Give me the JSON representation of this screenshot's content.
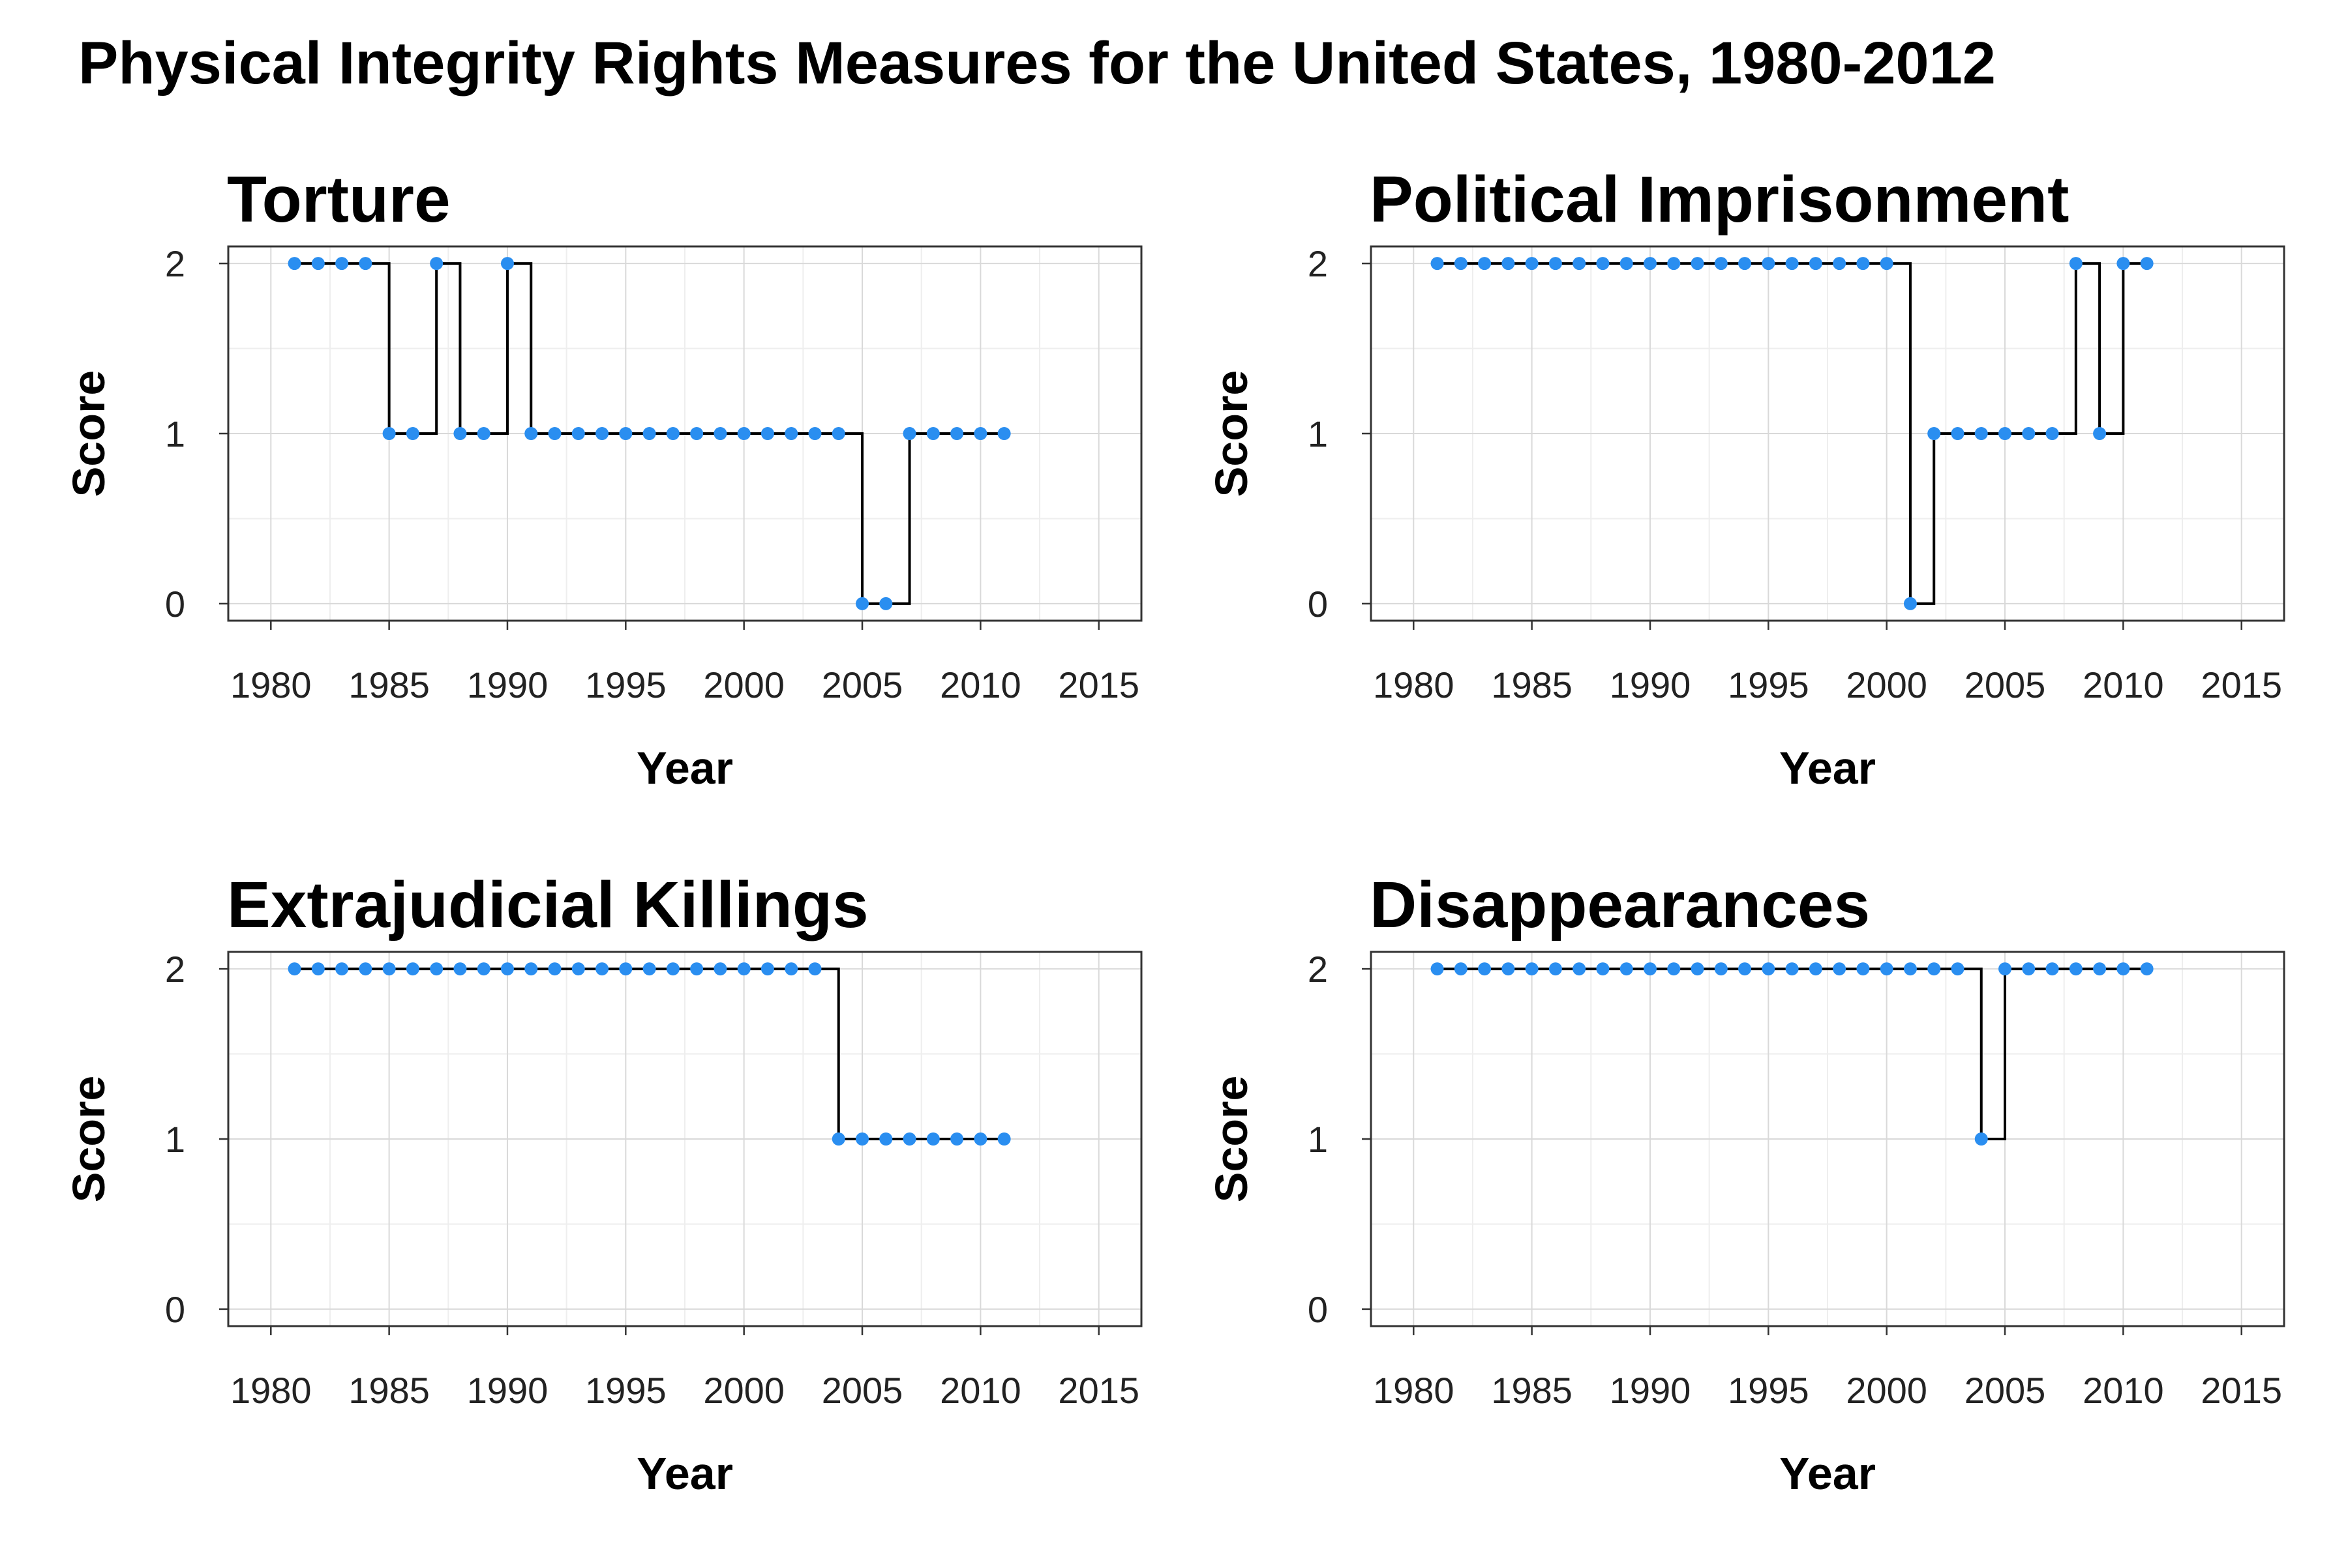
{
  "figure": {
    "title": "Physical Integrity Rights Measures for the United States, 1980-2012"
  },
  "style": {
    "point_color": "#2a8ef0",
    "line_color": "#000000",
    "grid_color": "#d9d9d9",
    "minor_grid_color": "#eeeeee",
    "frame_color": "#333333"
  },
  "chart_data": [
    {
      "type": "line",
      "step": true,
      "title": "Torture",
      "xlabel": "Year",
      "ylabel": "Score",
      "xlim": [
        1978.2,
        2016.8
      ],
      "ylim": [
        -0.1,
        2.1
      ],
      "xticks": [
        1980,
        1985,
        1990,
        1995,
        2000,
        2005,
        2010,
        2015
      ],
      "yticks": [
        0,
        1,
        2
      ],
      "grid": true,
      "x": [
        1981,
        1982,
        1983,
        1984,
        1985,
        1986,
        1987,
        1988,
        1989,
        1990,
        1991,
        1992,
        1993,
        1994,
        1995,
        1996,
        1997,
        1998,
        1999,
        2000,
        2001,
        2002,
        2003,
        2004,
        2005,
        2006,
        2007,
        2008,
        2009,
        2010,
        2011
      ],
      "y": [
        2,
        2,
        2,
        2,
        1,
        1,
        2,
        1,
        1,
        2,
        1,
        1,
        1,
        1,
        1,
        1,
        1,
        1,
        1,
        1,
        1,
        1,
        1,
        1,
        0,
        0,
        1,
        1,
        1,
        1,
        1
      ]
    },
    {
      "type": "line",
      "step": true,
      "title": "Political Imprisonment",
      "xlabel": "Year",
      "ylabel": "Score",
      "xlim": [
        1978.2,
        2016.8
      ],
      "ylim": [
        -0.1,
        2.1
      ],
      "xticks": [
        1980,
        1985,
        1990,
        1995,
        2000,
        2005,
        2010,
        2015
      ],
      "yticks": [
        0,
        1,
        2
      ],
      "grid": true,
      "x": [
        1981,
        1982,
        1983,
        1984,
        1985,
        1986,
        1987,
        1988,
        1989,
        1990,
        1991,
        1992,
        1993,
        1994,
        1995,
        1996,
        1997,
        1998,
        1999,
        2000,
        2001,
        2002,
        2003,
        2004,
        2005,
        2006,
        2007,
        2008,
        2009,
        2010,
        2011
      ],
      "y": [
        2,
        2,
        2,
        2,
        2,
        2,
        2,
        2,
        2,
        2,
        2,
        2,
        2,
        2,
        2,
        2,
        2,
        2,
        2,
        2,
        0,
        1,
        1,
        1,
        1,
        1,
        1,
        2,
        1,
        2,
        2
      ]
    },
    {
      "type": "line",
      "step": true,
      "title": "Extrajudicial Killings",
      "xlabel": "Year",
      "ylabel": "Score",
      "xlim": [
        1978.2,
        2016.8
      ],
      "ylim": [
        -0.1,
        2.1
      ],
      "xticks": [
        1980,
        1985,
        1990,
        1995,
        2000,
        2005,
        2010,
        2015
      ],
      "yticks": [
        0,
        1,
        2
      ],
      "grid": true,
      "x": [
        1981,
        1982,
        1983,
        1984,
        1985,
        1986,
        1987,
        1988,
        1989,
        1990,
        1991,
        1992,
        1993,
        1994,
        1995,
        1996,
        1997,
        1998,
        1999,
        2000,
        2001,
        2002,
        2003,
        2004,
        2005,
        2006,
        2007,
        2008,
        2009,
        2010,
        2011
      ],
      "y": [
        2,
        2,
        2,
        2,
        2,
        2,
        2,
        2,
        2,
        2,
        2,
        2,
        2,
        2,
        2,
        2,
        2,
        2,
        2,
        2,
        2,
        2,
        2,
        1,
        1,
        1,
        1,
        1,
        1,
        1,
        1
      ]
    },
    {
      "type": "line",
      "step": true,
      "title": "Disappearances",
      "xlabel": "Year",
      "ylabel": "Score",
      "xlim": [
        1978.2,
        2016.8
      ],
      "ylim": [
        -0.1,
        2.1
      ],
      "xticks": [
        1980,
        1985,
        1990,
        1995,
        2000,
        2005,
        2010,
        2015
      ],
      "yticks": [
        0,
        1,
        2
      ],
      "grid": true,
      "x": [
        1981,
        1982,
        1983,
        1984,
        1985,
        1986,
        1987,
        1988,
        1989,
        1990,
        1991,
        1992,
        1993,
        1994,
        1995,
        1996,
        1997,
        1998,
        1999,
        2000,
        2001,
        2002,
        2003,
        2004,
        2005,
        2006,
        2007,
        2008,
        2009,
        2010,
        2011
      ],
      "y": [
        2,
        2,
        2,
        2,
        2,
        2,
        2,
        2,
        2,
        2,
        2,
        2,
        2,
        2,
        2,
        2,
        2,
        2,
        2,
        2,
        2,
        2,
        2,
        1,
        2,
        2,
        2,
        2,
        2,
        2,
        2
      ]
    }
  ]
}
